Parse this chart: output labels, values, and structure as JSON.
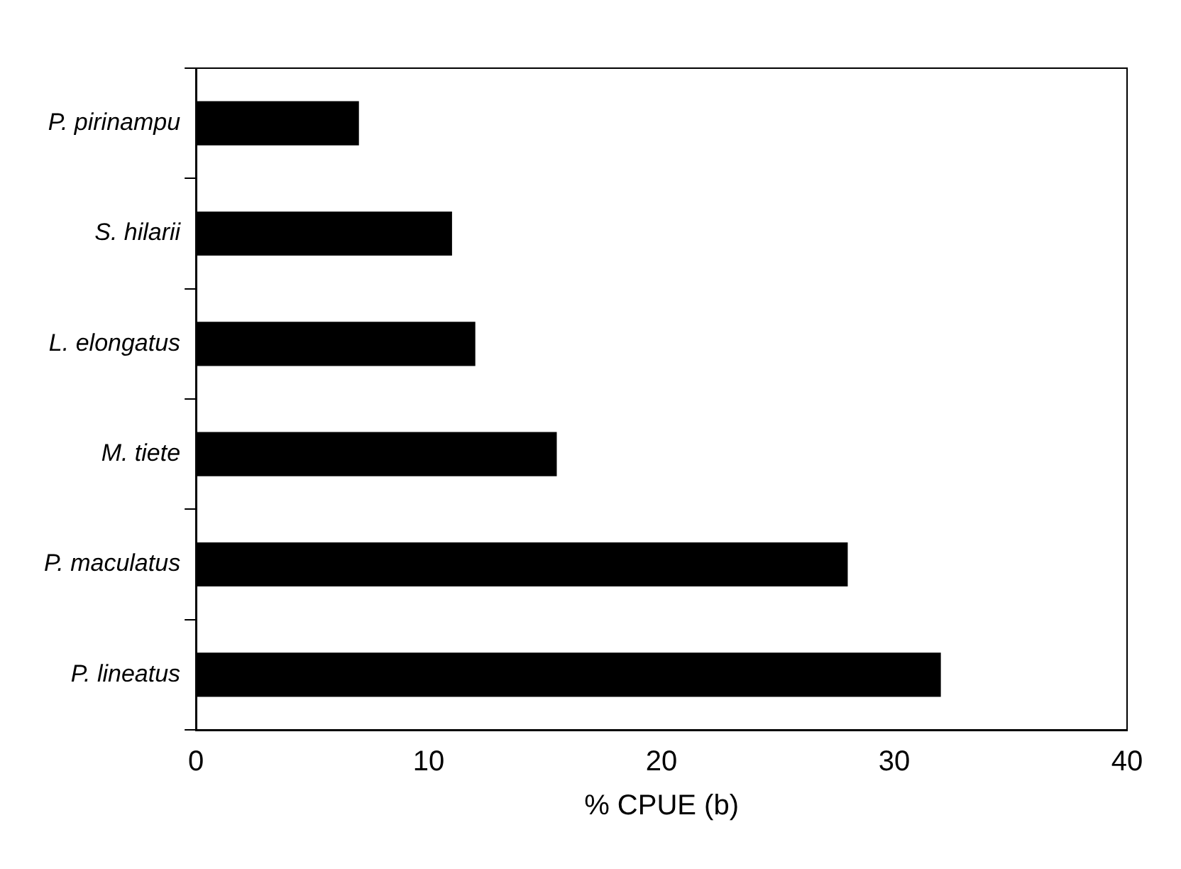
{
  "chart_data": {
    "type": "bar",
    "orientation": "horizontal",
    "xlabel": "% CPUE (b)",
    "categories": [
      "P. pirinampu",
      "S. hilarii",
      "L. elongatus",
      "M. tiete",
      "P. maculatus",
      "P. lineatus"
    ],
    "values": [
      7,
      11,
      12,
      15.5,
      28,
      32
    ],
    "color": "#000000",
    "xlim": [
      0,
      40
    ],
    "xticks": [
      0,
      10,
      20,
      30,
      40
    ],
    "grid": false,
    "legend": false
  }
}
